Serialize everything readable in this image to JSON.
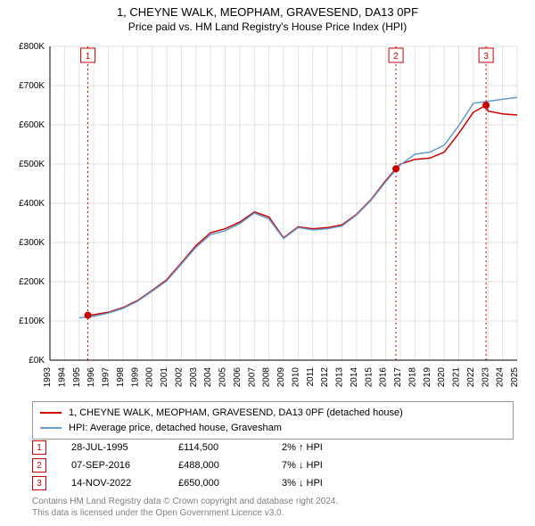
{
  "title": "1, CHEYNE WALK, MEOPHAM, GRAVESEND, DA13 0PF",
  "subtitle": "Price paid vs. HM Land Registry's House Price Index (HPI)",
  "chart": {
    "type": "line",
    "background_color": "#ffffff",
    "grid_color": "#e0e0e0",
    "axis_color": "#000000",
    "tick_font_size": 10,
    "x": {
      "years": [
        1993,
        1994,
        1995,
        1996,
        1997,
        1998,
        1999,
        2000,
        2001,
        2002,
        2003,
        2004,
        2005,
        2006,
        2007,
        2008,
        2009,
        2010,
        2011,
        2012,
        2013,
        2014,
        2015,
        2016,
        2017,
        2018,
        2019,
        2020,
        2021,
        2022,
        2023,
        2024,
        2025
      ],
      "rotation_deg": -90
    },
    "y": {
      "min": 0,
      "max": 800000,
      "tick_step": 100000,
      "format_prefix": "£",
      "format_suffix": "K",
      "divide_by": 1000
    },
    "series": [
      {
        "id": "property",
        "label": "1, CHEYNE WALK, MEOPHAM, GRAVESEND, DA13 0PF (detached house)",
        "color": "#cc0000",
        "line_width": 1.5,
        "points": [
          [
            1995.6,
            114500
          ],
          [
            1996,
            116000
          ],
          [
            1997,
            122000
          ],
          [
            1998,
            134000
          ],
          [
            1999,
            152000
          ],
          [
            2000,
            178000
          ],
          [
            2001,
            205000
          ],
          [
            2002,
            248000
          ],
          [
            2003,
            292000
          ],
          [
            2004,
            325000
          ],
          [
            2005,
            335000
          ],
          [
            2006,
            352000
          ],
          [
            2007,
            378000
          ],
          [
            2008,
            365000
          ],
          [
            2009,
            312000
          ],
          [
            2010,
            340000
          ],
          [
            2011,
            335000
          ],
          [
            2012,
            338000
          ],
          [
            2013,
            345000
          ],
          [
            2014,
            372000
          ],
          [
            2015,
            410000
          ],
          [
            2016,
            458000
          ],
          [
            2016.7,
            488000
          ],
          [
            2017,
            500000
          ],
          [
            2018,
            512000
          ],
          [
            2019,
            515000
          ],
          [
            2020,
            530000
          ],
          [
            2021,
            578000
          ],
          [
            2022,
            632000
          ],
          [
            2022.87,
            650000
          ],
          [
            2023,
            635000
          ],
          [
            2024,
            628000
          ],
          [
            2025,
            625000
          ]
        ]
      },
      {
        "id": "hpi",
        "label": "HPI: Average price, detached house, Gravesham",
        "color": "#6699cc",
        "line_width": 1.5,
        "points": [
          [
            1995,
            108000
          ],
          [
            1996,
            112000
          ],
          [
            1997,
            120000
          ],
          [
            1998,
            132000
          ],
          [
            1999,
            150000
          ],
          [
            2000,
            176000
          ],
          [
            2001,
            202000
          ],
          [
            2002,
            245000
          ],
          [
            2003,
            288000
          ],
          [
            2004,
            320000
          ],
          [
            2005,
            330000
          ],
          [
            2006,
            348000
          ],
          [
            2007,
            375000
          ],
          [
            2008,
            360000
          ],
          [
            2009,
            310000
          ],
          [
            2010,
            338000
          ],
          [
            2011,
            332000
          ],
          [
            2012,
            335000
          ],
          [
            2013,
            342000
          ],
          [
            2014,
            370000
          ],
          [
            2015,
            408000
          ],
          [
            2016,
            455000
          ],
          [
            2017,
            498000
          ],
          [
            2018,
            525000
          ],
          [
            2019,
            530000
          ],
          [
            2020,
            548000
          ],
          [
            2021,
            598000
          ],
          [
            2022,
            655000
          ],
          [
            2023,
            660000
          ],
          [
            2024,
            665000
          ],
          [
            2025,
            670000
          ]
        ]
      }
    ],
    "event_markers": [
      {
        "n": "1",
        "year": 1995.6,
        "price": 114500
      },
      {
        "n": "2",
        "year": 2016.7,
        "price": 488000
      },
      {
        "n": "3",
        "year": 2022.87,
        "price": 650000
      }
    ],
    "marker_line_color": "#cc0000",
    "marker_dot_color": "#cc0000",
    "marker_dot_radius": 4,
    "marker_badge_border": "#cc0000",
    "marker_badge_text_color": "#cc0000"
  },
  "legend": {
    "border_color": "#999999",
    "rows": [
      {
        "color": "#cc0000",
        "label": "1, CHEYNE WALK, MEOPHAM, GRAVESEND, DA13 0PF (detached house)"
      },
      {
        "color": "#6699cc",
        "label": "HPI: Average price, detached house, Gravesham"
      }
    ]
  },
  "transactions": [
    {
      "n": "1",
      "date": "28-JUL-1995",
      "price": "£114,500",
      "delta": "2% ↑ HPI"
    },
    {
      "n": "2",
      "date": "07-SEP-2016",
      "price": "£488,000",
      "delta": "7% ↓ HPI"
    },
    {
      "n": "3",
      "date": "14-NOV-2022",
      "price": "£650,000",
      "delta": "3% ↓ HPI"
    }
  ],
  "footer_line1": "Contains HM Land Registry data © Crown copyright and database right 2024.",
  "footer_line2": "This data is licensed under the Open Government Licence v3.0."
}
